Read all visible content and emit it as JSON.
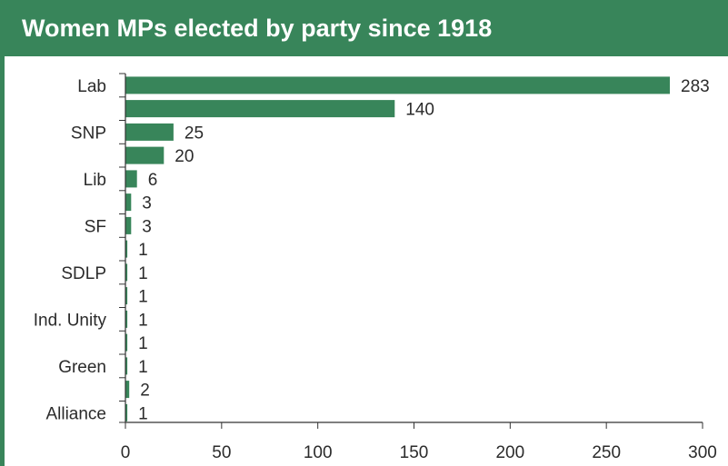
{
  "title": "Women MPs elected by party since 1918",
  "colors": {
    "header": "#38855a",
    "bar": "#38855a",
    "axis": "#333333",
    "text": "#2b2b2b"
  },
  "chart_data": {
    "type": "bar",
    "orientation": "horizontal",
    "title": "Women MPs elected by party since 1918",
    "xlabel": "",
    "ylabel": "",
    "xlim": [
      0,
      300
    ],
    "x_ticks": [
      0,
      50,
      100,
      150,
      200,
      250,
      300
    ],
    "grid": false,
    "categories": [
      "Lab",
      "",
      "SNP",
      "",
      "Lib",
      "",
      "SF",
      "",
      "SDLP",
      "",
      "Ind. Unity",
      "",
      "Green",
      "",
      "Alliance"
    ],
    "values": [
      283,
      140,
      25,
      20,
      6,
      3,
      3,
      1,
      1,
      1,
      1,
      1,
      1,
      2,
      1
    ]
  }
}
